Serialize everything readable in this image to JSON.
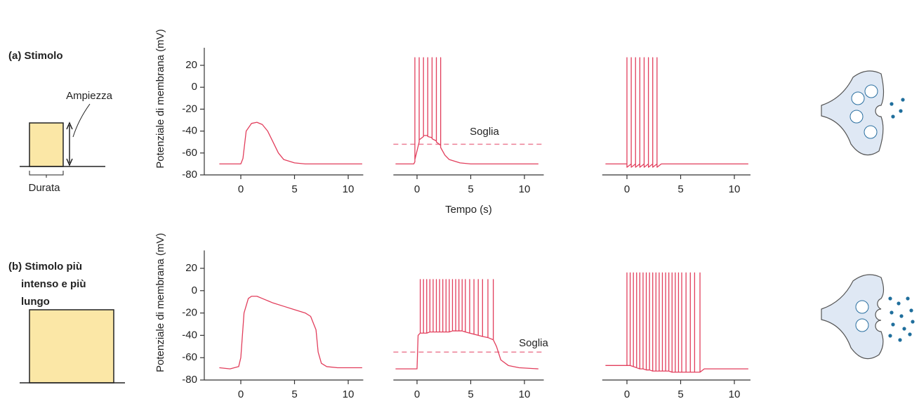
{
  "stimulus": {
    "a": {
      "label": "(a) Stimolo",
      "amplitude": "Ampiezza",
      "duration": "Durata"
    },
    "b": {
      "label": [
        "(b) Stimolo più",
        "intenso e più",
        "lungo"
      ]
    }
  },
  "chart_data": [
    {
      "type": "line",
      "ylabel": "Potenziale di membrana (mV)",
      "color": "#e23e5c",
      "xlim": [
        -3.4,
        11.4
      ],
      "ylim": [
        -80,
        36
      ],
      "xticks": [
        0,
        5,
        10
      ],
      "yticks": [
        -80,
        -60,
        -40,
        -20,
        0,
        20
      ],
      "x": [
        -2,
        0,
        0.2,
        0.5,
        1,
        1.5,
        2,
        2.5,
        3,
        3.5,
        4,
        5,
        6,
        11.3
      ],
      "values": [
        -70,
        -70,
        -65,
        -40,
        -33,
        -32,
        -34,
        -40,
        -50,
        -60,
        -66,
        -69,
        -70,
        -70
      ]
    },
    {
      "type": "line",
      "xlabel": "Tempo (s)",
      "color": "#e23e5c",
      "xlim": [
        -2.2,
        11.8
      ],
      "ylim": [
        -80,
        36
      ],
      "xticks": [
        0,
        5,
        10
      ],
      "threshold": {
        "value": -52,
        "label": "Soglia"
      },
      "x": [
        -2,
        -0.3,
        -0.2,
        -0.2,
        -0.2,
        0.2,
        0.2,
        0.2,
        0.6,
        0.6,
        0.6,
        1.0,
        1.0,
        1.0,
        1.4,
        1.4,
        1.4,
        1.8,
        1.8,
        1.8,
        2.2,
        2.2,
        2.2,
        2.6,
        3,
        4,
        5,
        11.3
      ],
      "values": [
        -70,
        -70,
        -68,
        27,
        -66,
        -50,
        27,
        -48,
        -45,
        27,
        -44,
        -44,
        27,
        -45,
        -46,
        27,
        -47,
        -49,
        27,
        -50,
        -53,
        27,
        -55,
        -62,
        -66,
        -69,
        -70,
        -70
      ]
    },
    {
      "type": "line",
      "color": "#e23e5c",
      "xlim": [
        -2.3,
        11.5
      ],
      "ylim": [
        -80,
        36
      ],
      "xticks": [
        0,
        5,
        10
      ],
      "x": [
        -2,
        0,
        0,
        0,
        0.4,
        0.4,
        0.4,
        0.8,
        0.8,
        0.8,
        1.2,
        1.2,
        1.2,
        1.6,
        1.6,
        1.6,
        2.0,
        2.0,
        2.0,
        2.4,
        2.4,
        2.4,
        2.8,
        2.8,
        2.8,
        3.2,
        11.3
      ],
      "values": [
        -70,
        -70,
        27,
        -73,
        -70,
        27,
        -73,
        -70,
        27,
        -73,
        -70,
        27,
        -73,
        -70,
        27,
        -73,
        -70,
        27,
        -73,
        -70,
        27,
        -73,
        -70,
        27,
        -73,
        -70,
        -70
      ]
    },
    {
      "type": "line",
      "ylabel": "Potenziale di membrana (mV)",
      "color": "#e23e5c",
      "xlim": [
        -3.4,
        11.4
      ],
      "ylim": [
        -80,
        36
      ],
      "xticks": [
        0,
        5,
        10
      ],
      "yticks": [
        -80,
        -60,
        -40,
        -20,
        0,
        20
      ],
      "x": [
        -2,
        -1,
        -0.2,
        0,
        0.3,
        0.7,
        1,
        1.5,
        2,
        3,
        4,
        5,
        6,
        6.5,
        7,
        7.2,
        7.5,
        8,
        9,
        11.3
      ],
      "values": [
        -69,
        -70,
        -68,
        -60,
        -20,
        -7,
        -5,
        -5,
        -7,
        -11,
        -14,
        -17,
        -20,
        -23,
        -35,
        -55,
        -65,
        -68,
        -69,
        -69
      ]
    },
    {
      "type": "line",
      "color": "#e23e5c",
      "xlim": [
        -2.2,
        11.8
      ],
      "ylim": [
        -80,
        36
      ],
      "xticks": [
        0,
        5,
        10
      ],
      "threshold": {
        "value": -55,
        "label": "Soglia"
      },
      "x": [
        -2,
        0,
        0.1,
        0.3,
        0.3,
        0.3,
        0.6,
        0.6,
        0.6,
        0.9,
        0.9,
        0.9,
        1.2,
        1.2,
        1.2,
        1.5,
        1.5,
        1.5,
        1.8,
        1.8,
        1.8,
        2.1,
        2.1,
        2.1,
        2.4,
        2.4,
        2.4,
        2.7,
        2.7,
        2.7,
        3,
        3,
        3,
        3.3,
        3.3,
        3.3,
        3.6,
        3.6,
        3.6,
        3.9,
        3.9,
        3.9,
        4.2,
        4.2,
        4.2,
        4.5,
        4.5,
        4.5,
        4.9,
        4.9,
        4.9,
        5.3,
        5.3,
        5.3,
        5.7,
        5.7,
        5.7,
        6.1,
        6.1,
        6.1,
        6.6,
        6.6,
        6.6,
        7.1,
        7.1,
        7.1,
        7.4,
        7.8,
        8.5,
        9.5,
        11.3
      ],
      "values": [
        -70,
        -70,
        -40,
        -38,
        10,
        -38,
        -38,
        10,
        -38,
        -38,
        10,
        -38,
        -37,
        10,
        -37,
        -37,
        10,
        -37,
        -37,
        10,
        -37,
        -37,
        10,
        -37,
        -37,
        10,
        -37,
        -37,
        10,
        -37,
        -37,
        10,
        -37,
        -36,
        10,
        -36,
        -36,
        10,
        -36,
        -36,
        10,
        -36,
        -36,
        10,
        -36,
        -37,
        10,
        -37,
        -38,
        10,
        -38,
        -39,
        10,
        -39,
        -40,
        10,
        -40,
        -41,
        10,
        -41,
        -42,
        10,
        -42,
        -44,
        10,
        -44,
        -50,
        -62,
        -67,
        -69,
        -70
      ]
    },
    {
      "type": "line",
      "color": "#e23e5c",
      "xlim": [
        -2.3,
        11.5
      ],
      "ylim": [
        -80,
        36
      ],
      "xticks": [
        0,
        5,
        10
      ],
      "x": [
        -2,
        -0.1,
        0,
        0,
        0,
        0.3,
        0.3,
        0.3,
        0.6,
        0.6,
        0.6,
        0.9,
        0.9,
        0.9,
        1.2,
        1.2,
        1.2,
        1.5,
        1.5,
        1.5,
        1.8,
        1.8,
        1.8,
        2.1,
        2.1,
        2.1,
        2.4,
        2.4,
        2.4,
        2.7,
        2.7,
        2.7,
        3,
        3,
        3,
        3.3,
        3.3,
        3.3,
        3.6,
        3.6,
        3.6,
        3.9,
        3.9,
        3.9,
        4.2,
        4.2,
        4.2,
        4.5,
        4.5,
        4.5,
        4.8,
        4.8,
        4.8,
        5.1,
        5.1,
        5.1,
        5.5,
        5.5,
        5.5,
        5.9,
        5.9,
        5.9,
        6.3,
        6.3,
        6.3,
        6.8,
        6.8,
        6.8,
        7.2,
        11.3
      ],
      "values": [
        -67,
        -67,
        -67,
        16,
        -67,
        -67,
        16,
        -67,
        -68,
        16,
        -68,
        -69,
        16,
        -69,
        -70,
        16,
        -70,
        -70,
        16,
        -70,
        -71,
        16,
        -71,
        -71,
        16,
        -71,
        -72,
        16,
        -72,
        -72,
        16,
        -72,
        -72,
        16,
        -72,
        -72,
        16,
        -72,
        -72,
        16,
        -72,
        -72,
        16,
        -72,
        -73,
        16,
        -73,
        -73,
        16,
        -73,
        -73,
        16,
        -73,
        -73,
        16,
        -73,
        -73,
        16,
        -73,
        -73,
        16,
        -73,
        -73,
        16,
        -73,
        -73,
        16,
        -73,
        -70,
        -70
      ]
    }
  ]
}
